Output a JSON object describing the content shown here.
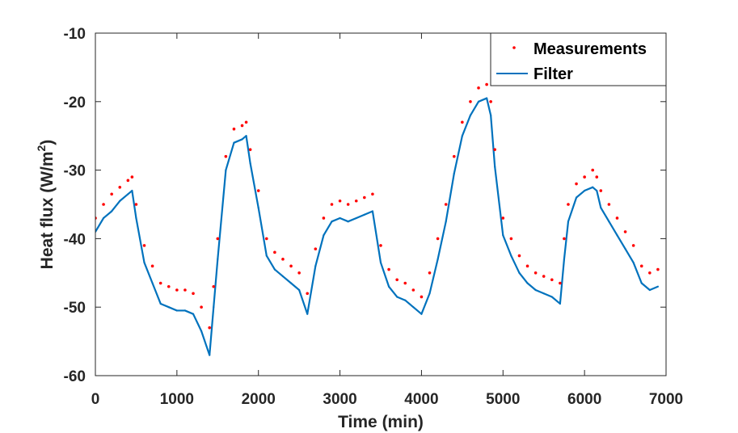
{
  "chart_data": {
    "type": "line",
    "title": "",
    "xlabel": "Time (min)",
    "ylabel_main": "Heat flux (W/m",
    "ylabel_sup": "2",
    "ylabel_end": ")",
    "xlim": [
      0,
      7000
    ],
    "ylim": [
      -60,
      -10
    ],
    "xticks": [
      0,
      1000,
      2000,
      3000,
      4000,
      5000,
      6000,
      7000
    ],
    "yticks": [
      -60,
      -50,
      -40,
      -30,
      -20,
      -10
    ],
    "grid": false,
    "legend_position": "top-right",
    "series": [
      {
        "name": "Measurements",
        "style": "dots",
        "color": "#ff0000",
        "x": [
          0,
          100,
          200,
          300,
          400,
          450,
          500,
          600,
          700,
          800,
          900,
          1000,
          1100,
          1200,
          1300,
          1400,
          1450,
          1500,
          1600,
          1700,
          1800,
          1850,
          1900,
          2000,
          2100,
          2200,
          2300,
          2400,
          2500,
          2600,
          2700,
          2800,
          2900,
          3000,
          3100,
          3200,
          3300,
          3400,
          3500,
          3600,
          3700,
          3800,
          3900,
          4000,
          4100,
          4200,
          4300,
          4400,
          4500,
          4600,
          4700,
          4800,
          4850,
          4900,
          5000,
          5100,
          5200,
          5300,
          5400,
          5500,
          5600,
          5700,
          5750,
          5800,
          5900,
          6000,
          6100,
          6150,
          6200,
          6300,
          6400,
          6500,
          6600,
          6700,
          6800,
          6900
        ],
        "y": [
          -37,
          -35,
          -33.5,
          -32.5,
          -31.5,
          -31,
          -35,
          -41,
          -44,
          -46.5,
          -47,
          -47.5,
          -47.5,
          -48,
          -50,
          -53,
          -47,
          -40,
          -28,
          -24,
          -23.5,
          -23,
          -27,
          -33,
          -40,
          -42,
          -43,
          -44,
          -45,
          -48,
          -41.5,
          -37,
          -35,
          -34.5,
          -35,
          -34.5,
          -34,
          -33.5,
          -41,
          -44.5,
          -46,
          -46.5,
          -47.5,
          -48.5,
          -45,
          -40,
          -35,
          -28,
          -23,
          -20,
          -18,
          -17.5,
          -20,
          -27,
          -37,
          -40,
          -42.5,
          -44,
          -45,
          -45.5,
          -46,
          -46.5,
          -40,
          -35,
          -32,
          -31,
          -30,
          -31,
          -33,
          -35,
          -37,
          -39,
          -41,
          -44,
          -45,
          -44.5
        ]
      },
      {
        "name": "Filter",
        "style": "line",
        "color": "#0072bd",
        "x": [
          0,
          100,
          200,
          300,
          400,
          450,
          500,
          600,
          700,
          800,
          900,
          1000,
          1100,
          1200,
          1300,
          1400,
          1450,
          1500,
          1600,
          1700,
          1800,
          1850,
          1900,
          2000,
          2100,
          2200,
          2300,
          2400,
          2500,
          2600,
          2700,
          2800,
          2900,
          3000,
          3100,
          3200,
          3300,
          3400,
          3500,
          3600,
          3700,
          3800,
          3900,
          4000,
          4100,
          4200,
          4300,
          4400,
          4500,
          4600,
          4700,
          4800,
          4850,
          4900,
          5000,
          5100,
          5200,
          5300,
          5400,
          5500,
          5600,
          5700,
          5750,
          5800,
          5900,
          6000,
          6100,
          6150,
          6200,
          6300,
          6400,
          6500,
          6600,
          6700,
          6800,
          6900
        ],
        "y": [
          -39,
          -37,
          -36,
          -34.5,
          -33.5,
          -33,
          -37,
          -43.5,
          -46.5,
          -49.5,
          -50,
          -50.5,
          -50.5,
          -51,
          -53.5,
          -57,
          -50,
          -43,
          -30,
          -26,
          -25.5,
          -25,
          -29,
          -35.5,
          -42.5,
          -44.5,
          -45.5,
          -46.5,
          -47.5,
          -51,
          -44,
          -39.5,
          -37.5,
          -37,
          -37.5,
          -37,
          -36.5,
          -36,
          -43.5,
          -47,
          -48.5,
          -49,
          -50,
          -51,
          -48,
          -43,
          -37.5,
          -30.5,
          -25,
          -22,
          -20,
          -19.5,
          -22,
          -29.5,
          -39.5,
          -42.5,
          -45,
          -46.5,
          -47.5,
          -48,
          -48.5,
          -49.5,
          -43,
          -37.5,
          -34,
          -33,
          -32.5,
          -33,
          -35.5,
          -37.5,
          -39.5,
          -41.5,
          -43.5,
          -46.5,
          -47.5,
          -47
        ]
      }
    ]
  }
}
